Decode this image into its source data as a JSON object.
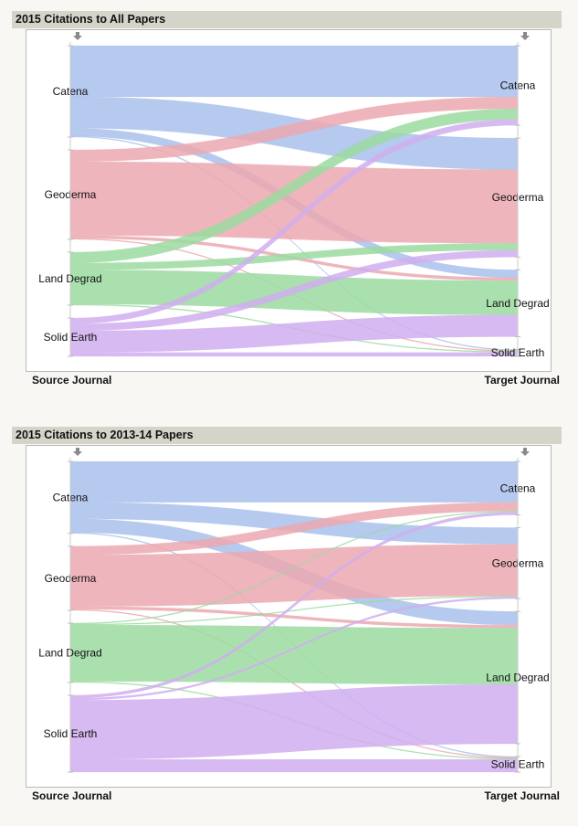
{
  "colors": {
    "Catena": "#a9bfeb",
    "Geoderma": "#eca8b0",
    "Land Degrad": "#9bdba0",
    "Solid Earth": "#d0aeef"
  },
  "source_axis_label": "Source Journal",
  "target_axis_label": "Target Journal",
  "arrow_icon": "down-arrow-icon",
  "chart_data": [
    {
      "type": "sankey",
      "title": "2015 Citations to All Papers",
      "nodes": [
        "Catena",
        "Geoderma",
        "Land Degrad",
        "Solid Earth"
      ],
      "links": [
        {
          "source": "Catena",
          "target": "Catena",
          "value": 52
        },
        {
          "source": "Catena",
          "target": "Geoderma",
          "value": 32
        },
        {
          "source": "Catena",
          "target": "Land Degrad",
          "value": 8
        },
        {
          "source": "Catena",
          "target": "Solid Earth",
          "value": 1
        },
        {
          "source": "Geoderma",
          "target": "Catena",
          "value": 12
        },
        {
          "source": "Geoderma",
          "target": "Geoderma",
          "value": 75
        },
        {
          "source": "Geoderma",
          "target": "Land Degrad",
          "value": 3
        },
        {
          "source": "Geoderma",
          "target": "Solid Earth",
          "value": 1
        },
        {
          "source": "Land Degrad",
          "target": "Catena",
          "value": 11
        },
        {
          "source": "Land Degrad",
          "target": "Geoderma",
          "value": 7
        },
        {
          "source": "Land Degrad",
          "target": "Land Degrad",
          "value": 35
        },
        {
          "source": "Land Degrad",
          "target": "Solid Earth",
          "value": 1
        },
        {
          "source": "Solid Earth",
          "target": "Catena",
          "value": 6
        },
        {
          "source": "Solid Earth",
          "target": "Geoderma",
          "value": 7
        },
        {
          "source": "Solid Earth",
          "target": "Land Degrad",
          "value": 22
        },
        {
          "source": "Solid Earth",
          "target": "Solid Earth",
          "value": 4
        }
      ]
    },
    {
      "type": "sankey",
      "title": "2015 Citations to 2013-14 Papers",
      "nodes": [
        "Catena",
        "Geoderma",
        "Land Degrad",
        "Solid Earth"
      ],
      "links": [
        {
          "source": "Catena",
          "target": "Catena",
          "value": 42
        },
        {
          "source": "Catena",
          "target": "Geoderma",
          "value": 17
        },
        {
          "source": "Catena",
          "target": "Land Degrad",
          "value": 14
        },
        {
          "source": "Catena",
          "target": "Solid Earth",
          "value": 1
        },
        {
          "source": "Geoderma",
          "target": "Catena",
          "value": 9
        },
        {
          "source": "Geoderma",
          "target": "Geoderma",
          "value": 53
        },
        {
          "source": "Geoderma",
          "target": "Land Degrad",
          "value": 3
        },
        {
          "source": "Geoderma",
          "target": "Solid Earth",
          "value": 1
        },
        {
          "source": "Land Degrad",
          "target": "Catena",
          "value": 1
        },
        {
          "source": "Land Degrad",
          "target": "Geoderma",
          "value": 1
        },
        {
          "source": "Land Degrad",
          "target": "Land Degrad",
          "value": 58
        },
        {
          "source": "Land Degrad",
          "target": "Solid Earth",
          "value": 1
        },
        {
          "source": "Solid Earth",
          "target": "Catena",
          "value": 3
        },
        {
          "source": "Solid Earth",
          "target": "Geoderma",
          "value": 2
        },
        {
          "source": "Solid Earth",
          "target": "Land Degrad",
          "value": 61
        },
        {
          "source": "Solid Earth",
          "target": "Solid Earth",
          "value": 13
        }
      ]
    }
  ]
}
